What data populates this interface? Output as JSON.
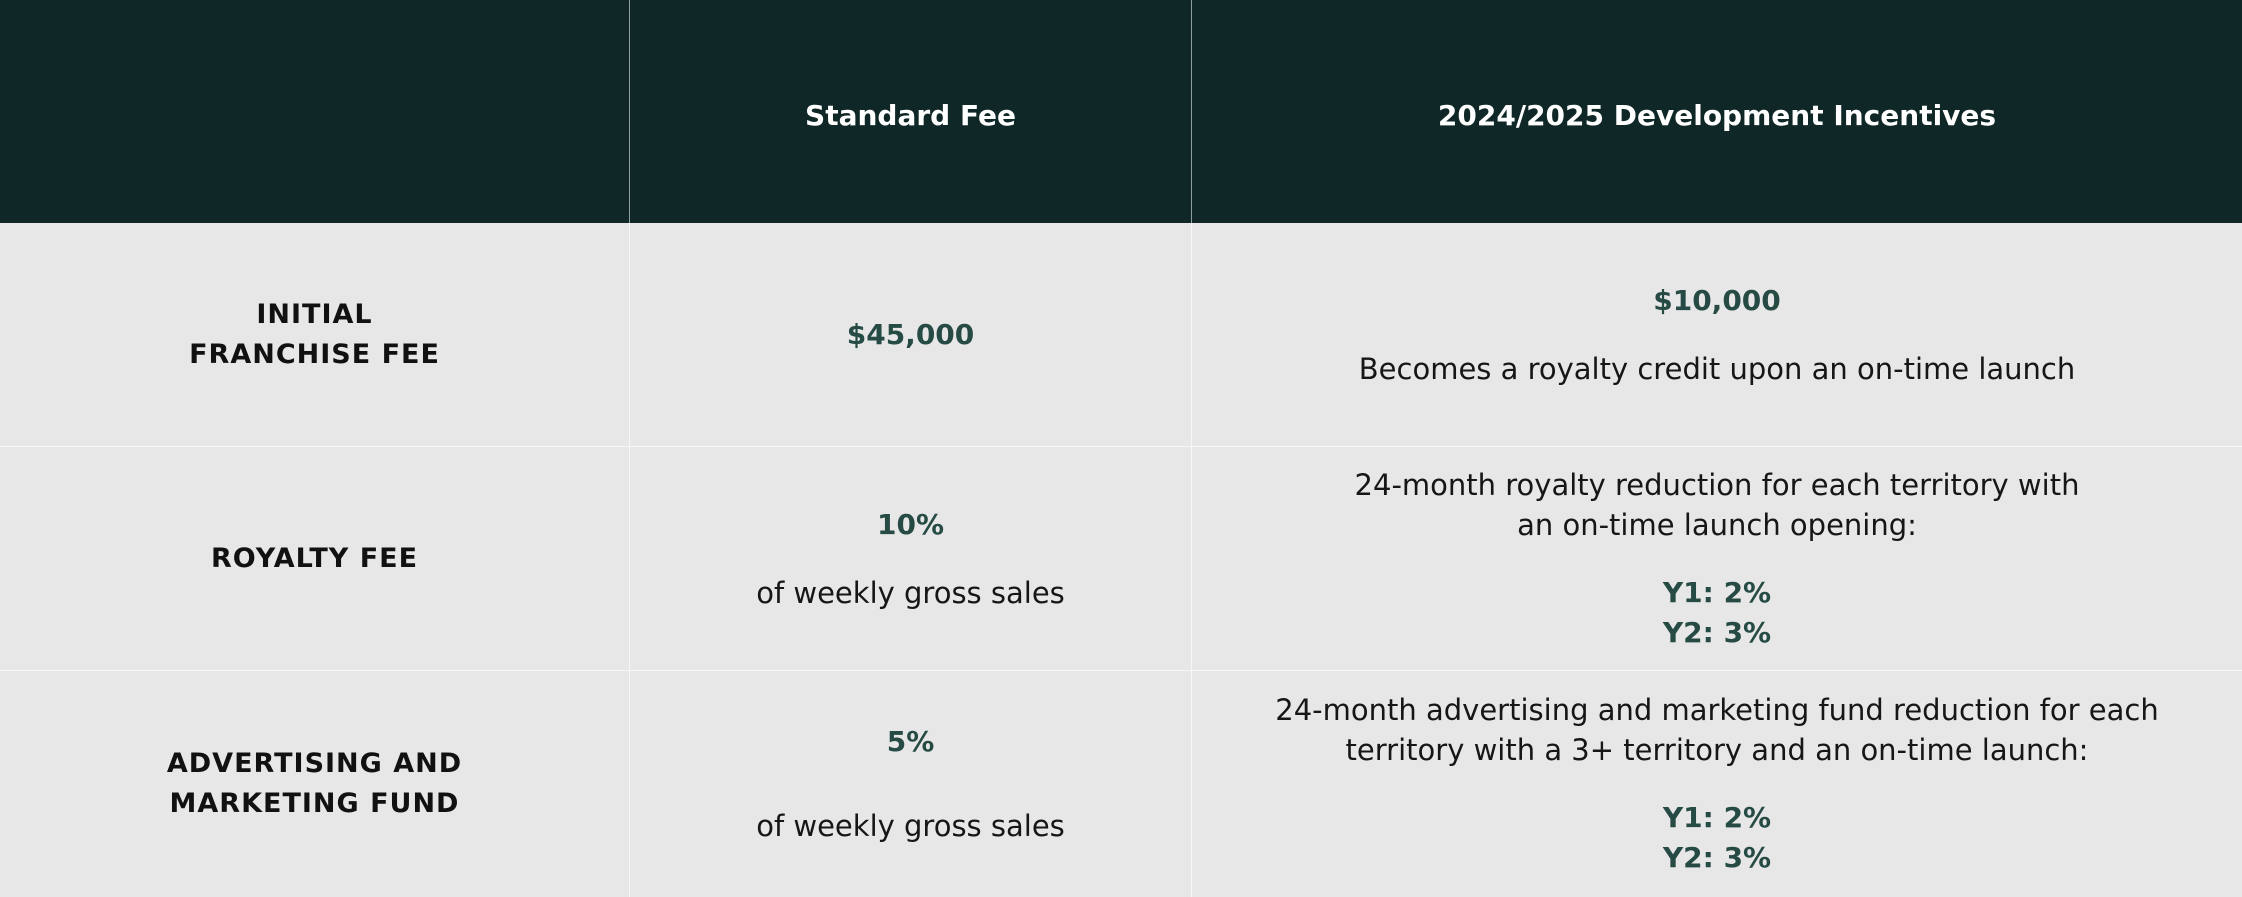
{
  "header": {
    "col_blank": "",
    "col_standard": "Standard Fee",
    "col_incentives": "2024/2025 Development Incentives"
  },
  "rows": [
    {
      "label_lines": [
        "INITIAL",
        "FRANCHISE FEE"
      ],
      "standard_value": "$45,000",
      "incentive_value": "$10,000",
      "incentive_note": "Becomes a royalty credit upon an on-time launch"
    },
    {
      "label_lines": [
        "ROYALTY FEE"
      ],
      "standard_value": "10%",
      "standard_note": "of weekly gross sales",
      "incentive_lines": [
        "24-month royalty reduction for each territory with",
        "an on-time launch opening:"
      ],
      "incentive_y1": "Y1: 2%",
      "incentive_y2": "Y2: 3%"
    },
    {
      "label_lines": [
        "ADVERTISING AND",
        "MARKETING FUND"
      ],
      "standard_value": "5%",
      "standard_note": "of weekly gross sales",
      "incentive_lines": [
        "24-month advertising and marketing fund reduction for each",
        "territory with a 3+ territory and an on-time launch:"
      ],
      "incentive_y1": "Y1: 2%",
      "incentive_y2": "Y2: 3%"
    }
  ],
  "colors": {
    "header_bg": "#0f2726",
    "body_bg": "#e7e7e7",
    "accent": "#264a44"
  }
}
